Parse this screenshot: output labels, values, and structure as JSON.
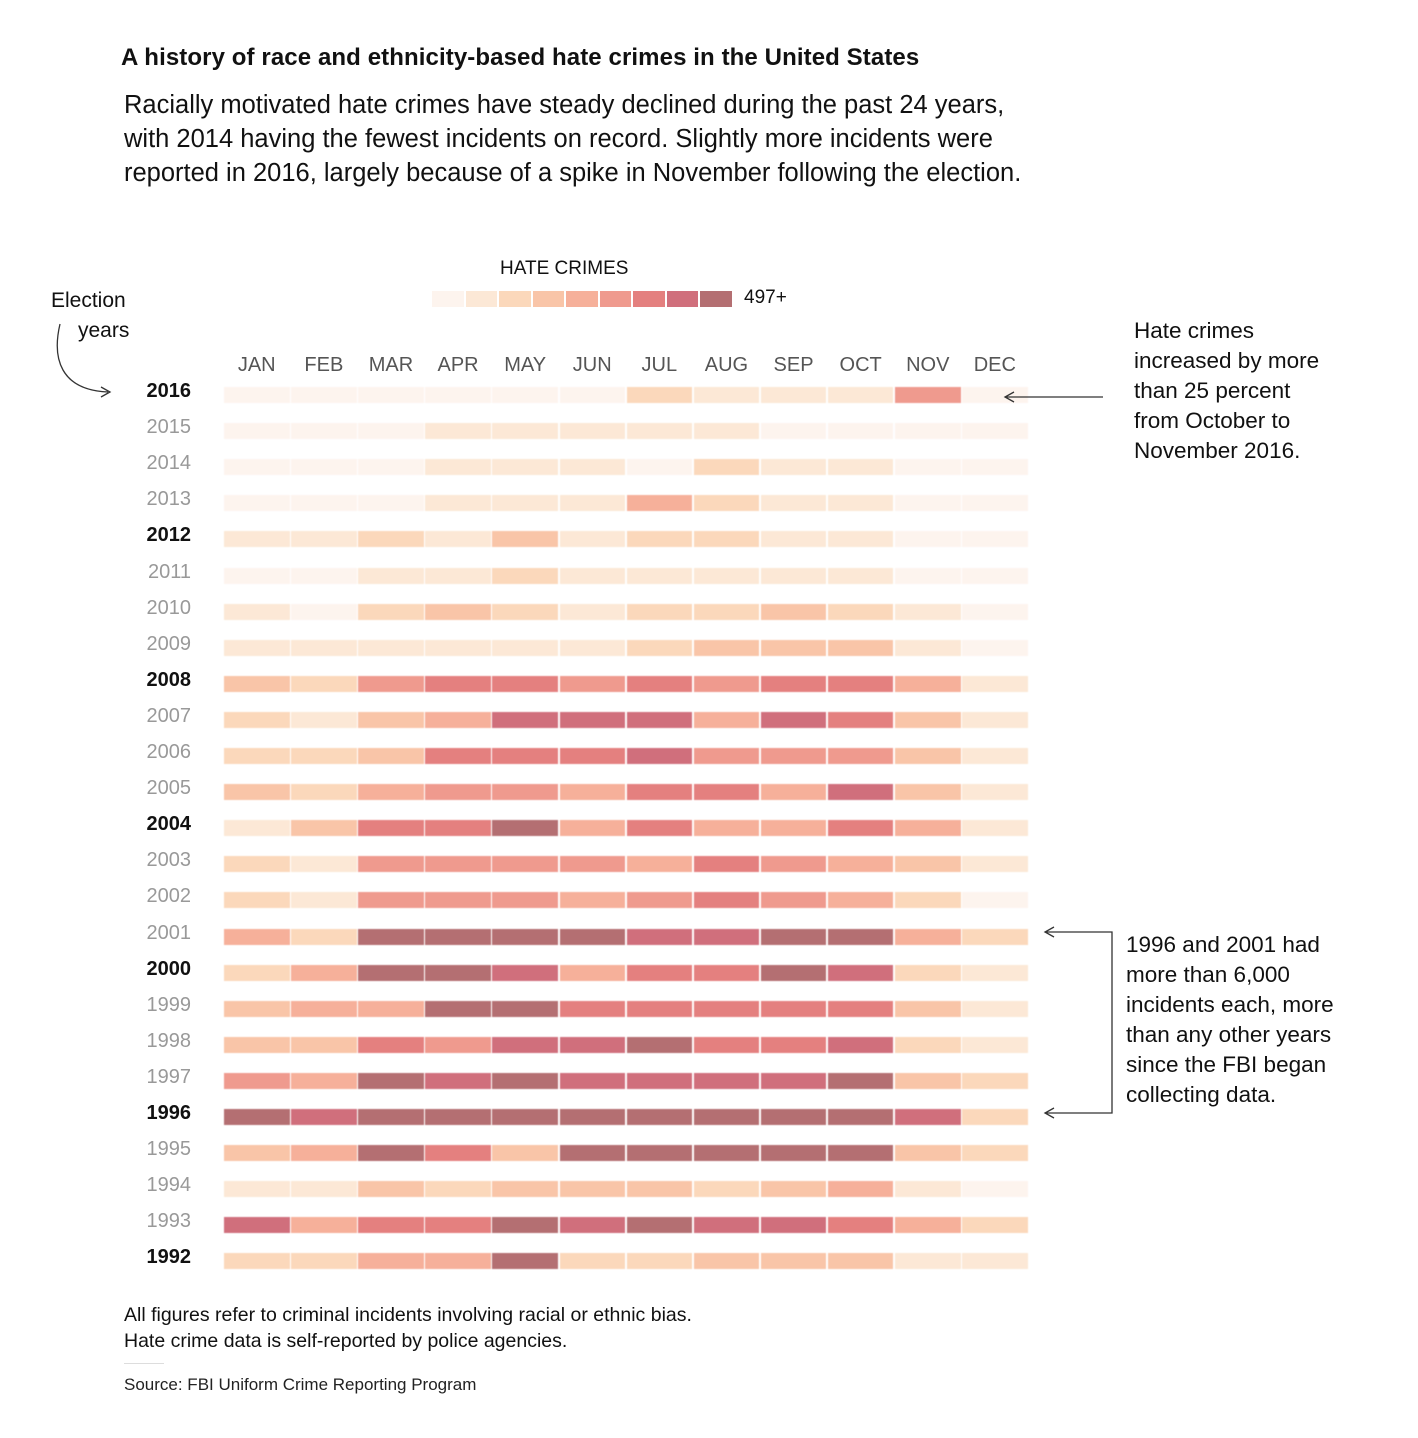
{
  "title": "A history of race and ethnicity-based hate crimes in the United States",
  "subtitle": "Racially motivated hate crimes have steady declined during the past 24 years, with 2014 having the fewest incidents on record. Slightly more incidents were reported in 2016, largely because of a spike in November following the election.",
  "legend": {
    "title": "HATE CRIMES",
    "max_label": "497+",
    "colors": [
      "#fdf4ee",
      "#fce8d6",
      "#fbd8bb",
      "#f9c5a8",
      "#f6b09a",
      "#ef9a8e",
      "#e4807f",
      "#d06f7c",
      "#b46f72"
    ]
  },
  "election_label": [
    "Election",
    "years"
  ],
  "annotations": {
    "nov2016": [
      "Hate crimes",
      "increased by more",
      "than 25 percent",
      "from October to",
      "November 2016."
    ],
    "peaks": [
      "1996 and 2001 had",
      "more than 6,000",
      "incidents each, more",
      "than any other years",
      "since the FBI began",
      "collecting data."
    ]
  },
  "footnote": "All figures refer to criminal incidents involving racial or ethnic bias. Hate crime data is self-reported by police agencies.",
  "source": "Source: FBI Uniform Crime Reporting Program",
  "chart_data": {
    "type": "heatmap",
    "title": "HATE CRIMES",
    "color_scale_max_label": "497+",
    "x_categories": [
      "JAN",
      "FEB",
      "MAR",
      "APR",
      "MAY",
      "JUN",
      "JUL",
      "AUG",
      "SEP",
      "OCT",
      "NOV",
      "DEC"
    ],
    "y_categories": [
      "2016",
      "2015",
      "2014",
      "2013",
      "2012",
      "2011",
      "2010",
      "2009",
      "2008",
      "2007",
      "2006",
      "2005",
      "2004",
      "2003",
      "2002",
      "2001",
      "2000",
      "1999",
      "1998",
      "1997",
      "1996",
      "1995",
      "1994",
      "1993",
      "1992"
    ],
    "election_years": [
      "2016",
      "2012",
      "2008",
      "2004",
      "2000",
      "1996",
      "1992"
    ],
    "values_level_0_to_8": [
      [
        0,
        0,
        0,
        0,
        0,
        0,
        2,
        1,
        1,
        1,
        5,
        0
      ],
      [
        0,
        0,
        0,
        1,
        1,
        1,
        1,
        1,
        0,
        0,
        0,
        0
      ],
      [
        0,
        0,
        0,
        1,
        1,
        1,
        0,
        2,
        1,
        1,
        0,
        0
      ],
      [
        0,
        0,
        0,
        1,
        1,
        1,
        4,
        2,
        1,
        1,
        0,
        0
      ],
      [
        1,
        1,
        2,
        1,
        3,
        1,
        2,
        2,
        1,
        1,
        0,
        0
      ],
      [
        0,
        0,
        1,
        1,
        2,
        1,
        1,
        1,
        1,
        1,
        0,
        0
      ],
      [
        1,
        0,
        2,
        3,
        2,
        1,
        2,
        2,
        3,
        2,
        1,
        0
      ],
      [
        1,
        1,
        1,
        1,
        1,
        1,
        2,
        3,
        3,
        3,
        1,
        0
      ],
      [
        3,
        2,
        5,
        6,
        6,
        5,
        6,
        5,
        6,
        6,
        4,
        1
      ],
      [
        2,
        1,
        3,
        4,
        7,
        7,
        7,
        4,
        7,
        6,
        3,
        1
      ],
      [
        2,
        2,
        3,
        6,
        6,
        6,
        7,
        5,
        5,
        5,
        3,
        1
      ],
      [
        3,
        2,
        4,
        5,
        5,
        4,
        6,
        6,
        4,
        7,
        3,
        1
      ],
      [
        1,
        3,
        6,
        6,
        8,
        4,
        6,
        4,
        4,
        6,
        4,
        1
      ],
      [
        2,
        1,
        5,
        5,
        5,
        5,
        4,
        6,
        5,
        4,
        3,
        1
      ],
      [
        2,
        1,
        5,
        5,
        5,
        4,
        5,
        6,
        5,
        4,
        2,
        0
      ],
      [
        4,
        2,
        8,
        8,
        8,
        8,
        7,
        7,
        8,
        8,
        4,
        2
      ],
      [
        2,
        4,
        8,
        8,
        7,
        4,
        6,
        6,
        8,
        7,
        2,
        1
      ],
      [
        3,
        4,
        4,
        8,
        8,
        6,
        6,
        6,
        6,
        6,
        3,
        1
      ],
      [
        3,
        3,
        6,
        5,
        7,
        7,
        8,
        6,
        6,
        7,
        2,
        1
      ],
      [
        5,
        4,
        8,
        7,
        8,
        7,
        7,
        7,
        7,
        8,
        3,
        2
      ],
      [
        8,
        7,
        8,
        8,
        8,
        8,
        8,
        8,
        8,
        8,
        7,
        2
      ],
      [
        3,
        4,
        8,
        6,
        3,
        8,
        8,
        8,
        8,
        8,
        3,
        2
      ],
      [
        1,
        1,
        3,
        2,
        3,
        3,
        3,
        2,
        3,
        4,
        1,
        0
      ],
      [
        7,
        4,
        6,
        6,
        8,
        7,
        8,
        7,
        7,
        6,
        4,
        2
      ],
      [
        2,
        2,
        4,
        4,
        8,
        2,
        2,
        3,
        3,
        3,
        1,
        1
      ]
    ]
  }
}
